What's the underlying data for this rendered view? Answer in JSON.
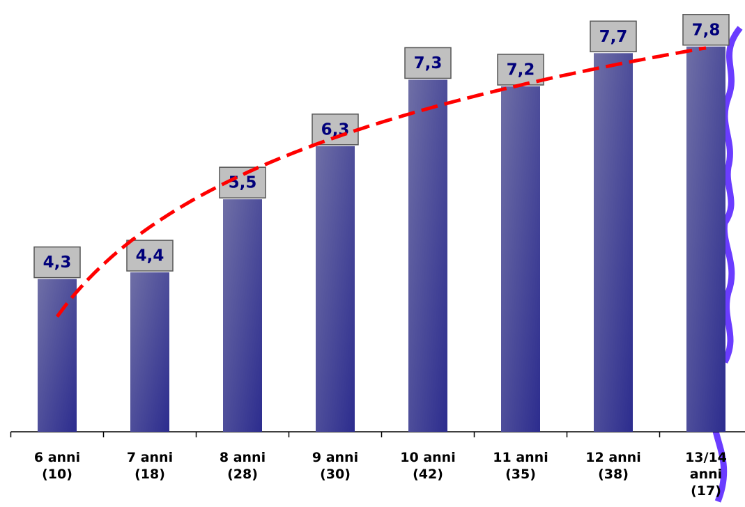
{
  "chart_data": {
    "type": "bar",
    "categories": [
      "6 anni (10)",
      "7 anni (18)",
      "8 anni (28)",
      "9 anni (30)",
      "10 anni (42)",
      "11 anni (35)",
      "12 anni (38)",
      "13/14 anni (17)"
    ],
    "values": [
      4.3,
      4.4,
      5.5,
      6.3,
      7.3,
      7.2,
      7.7,
      7.8
    ],
    "value_labels": [
      "4,3",
      "4,4",
      "5,5",
      "6,3",
      "7,3",
      "7,2",
      "7,7",
      "7,8"
    ],
    "color": "#3a3a96",
    "ylim": [
      2,
      8.5
    ],
    "trendline": {
      "type": "logarithmic",
      "color": "#ff0000"
    }
  }
}
